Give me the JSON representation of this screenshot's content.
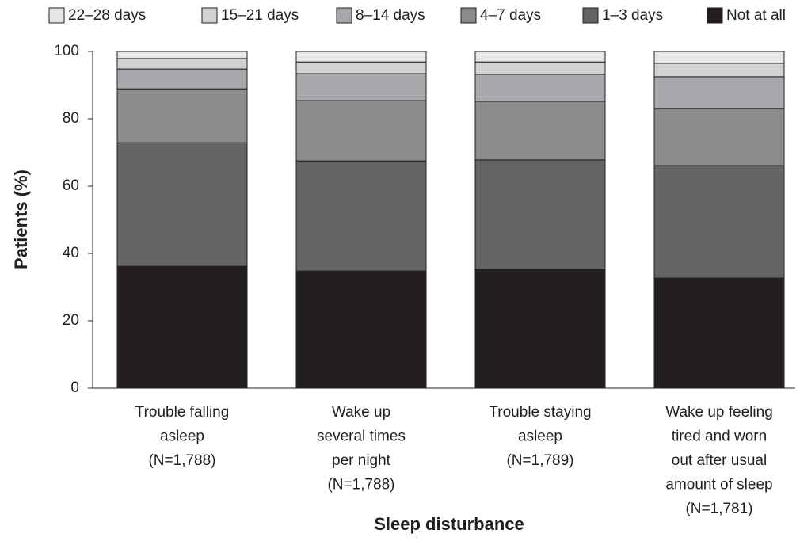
{
  "chart_data": {
    "type": "stacked_bar",
    "categories": [
      [
        "Trouble falling",
        "asleep",
        "(N=1,788)"
      ],
      [
        "Wake up",
        "several times",
        "per night",
        "(N=1,788)"
      ],
      [
        "Trouble staying",
        "asleep",
        "(N=1,789)"
      ],
      [
        "Wake up feeling",
        "tired and worn",
        "out after usual",
        "amount of sleep",
        "(N=1,781)"
      ]
    ],
    "series": [
      {
        "name": "Not at all",
        "color": "#231f20",
        "values": [
          36.2,
          34.8,
          35.3,
          32.7
        ]
      },
      {
        "name": "1–3 days",
        "color": "#636466",
        "values": [
          36.7,
          32.7,
          32.5,
          33.4
        ]
      },
      {
        "name": "4–7 days",
        "color": "#8a8b8d",
        "values": [
          16.0,
          17.9,
          17.4,
          17.0
        ]
      },
      {
        "name": "8–14 days",
        "color": "#a7a9ac",
        "values": [
          5.9,
          8.0,
          8.0,
          9.4
        ]
      },
      {
        "name": "15–21 days",
        "color": "#d1d3d4",
        "values": [
          3.1,
          3.5,
          3.7,
          4.0
        ]
      },
      {
        "name": "22–28 days",
        "color": "#e6e7e8",
        "values": [
          2.1,
          3.1,
          3.1,
          3.5
        ]
      }
    ],
    "ylim": [
      0,
      100
    ],
    "yticks": [
      0,
      20,
      40,
      60,
      80,
      100
    ],
    "ylabel": "Patients (%)",
    "xlabel": "Sleep disturbance"
  }
}
